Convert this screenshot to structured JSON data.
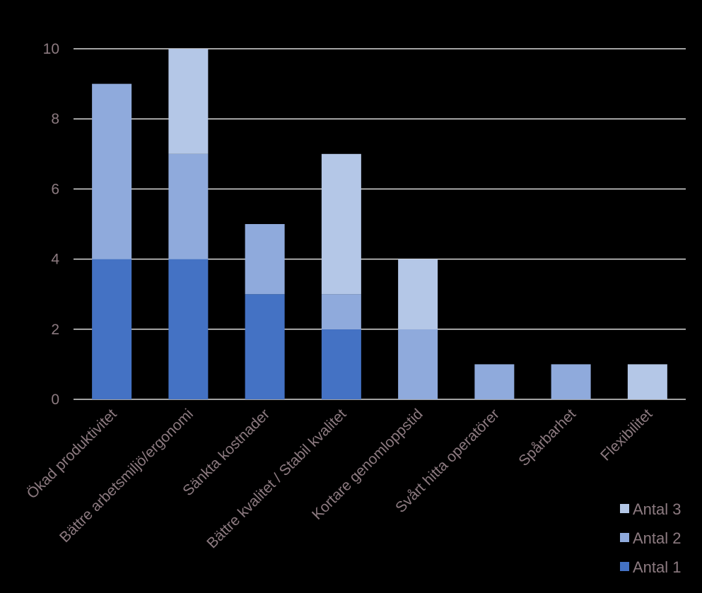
{
  "chart_data": {
    "type": "bar",
    "stacked": true,
    "categories": [
      "Ökad produktivitet",
      "Bättre arbetsmiljö/ergonomi",
      "Sänkta kostnader",
      "Bättre kvalitet / Stabil kvalitet",
      "Kortare genomloppstid",
      "Svårt hitta operatörer",
      "Spårbarhet",
      "Flexibilitet"
    ],
    "series": [
      {
        "name": "Antal 1",
        "color": "#4472c4",
        "values": [
          4,
          4,
          3,
          2,
          0,
          0,
          0,
          0
        ]
      },
      {
        "name": "Antal 2",
        "color": "#8faadc",
        "values": [
          5,
          3,
          2,
          1,
          2,
          1,
          1,
          0
        ]
      },
      {
        "name": "Antal 3",
        "color": "#b4c7e7",
        "values": [
          0,
          3,
          0,
          4,
          2,
          0,
          0,
          1
        ]
      }
    ],
    "yticks": [
      "0",
      "2",
      "4",
      "6",
      "8",
      "10"
    ],
    "ylim": [
      0,
      10
    ],
    "grid": true,
    "legend_position": "bottom-right",
    "legend_order": [
      "Antal 3",
      "Antal 2",
      "Antal 1"
    ],
    "gridline_color": "#d9d9d9"
  }
}
